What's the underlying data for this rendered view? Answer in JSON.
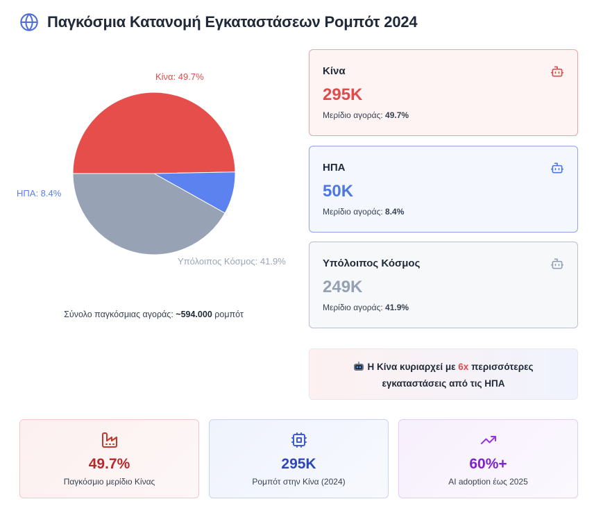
{
  "header": {
    "title": "Παγκόσμια Κατανομή Εγκαταστάσεων Ρομπότ 2024",
    "icon": "globe-icon"
  },
  "chart_data": {
    "type": "pie",
    "title": "Παγκόσμια Κατανομή Εγκαταστάσεων Ρομπότ 2024",
    "categories": [
      "Κίνα",
      "ΗΠΑ",
      "Υπόλοιπος Κόσμος"
    ],
    "values": [
      49.7,
      8.4,
      41.9
    ],
    "colors": [
      "#e54e4b",
      "#5b82ef",
      "#97a3b5"
    ],
    "labels": [
      "Κίνα: 49.7%",
      "ΗΠΑ: 8.4%",
      "Υπόλοιπος Κόσμος: 41.9%"
    ],
    "label_colors": [
      "#e04b4b",
      "#5b7de6",
      "#9aa5b7"
    ]
  },
  "total": {
    "prefix": "Σύνολο παγκόσμιας αγοράς:",
    "value": "~594.000",
    "suffix": "ρομπότ"
  },
  "cards": [
    {
      "name": "Κίνα",
      "value": "295K",
      "share_label": "Μερίδιο αγοράς:",
      "share_value": "49.7%",
      "icon": "robot-icon",
      "color": "#e04b4b"
    },
    {
      "name": "ΗΠΑ",
      "value": "50K",
      "share_label": "Μερίδιο αγοράς:",
      "share_value": "8.4%",
      "icon": "robot-icon",
      "color": "#4e77e3"
    },
    {
      "name": "Υπόλοιπος Κόσμος",
      "value": "249K",
      "share_label": "Μερίδιο αγοράς:",
      "share_value": "41.9%",
      "icon": "robot-icon",
      "color": "#94a1b4"
    }
  ],
  "insight": {
    "emoji": "robot-emoji",
    "part1": "Η Κίνα κυριαρχεί με",
    "highlight": "6x",
    "part2": "περισσότερες",
    "line2": "εγκαταστάσεις από τις ΗΠΑ"
  },
  "stats": [
    {
      "value": "49.7%",
      "caption": "Παγκόσμιο μερίδιο Κίνας",
      "icon": "factory-icon",
      "color": "#b42a2a"
    },
    {
      "value": "295K",
      "caption": "Ρομπότ στην Κίνα (2024)",
      "icon": "cpu-icon",
      "color": "#2d47b8"
    },
    {
      "value": "60%+",
      "caption": "AI adoption έως 2025",
      "icon": "trending-up-icon",
      "color": "#7e22ce"
    }
  ]
}
